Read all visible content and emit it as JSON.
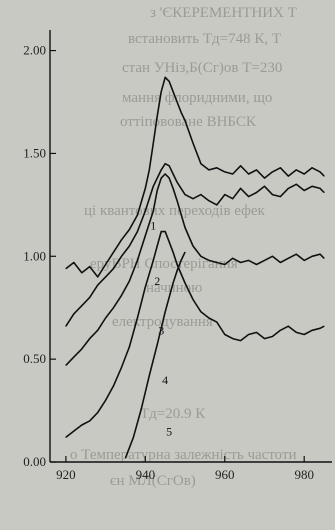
{
  "chart_data": {
    "type": "line",
    "title": "",
    "xlabel": "",
    "ylabel": "",
    "xlim": [
      916,
      987
    ],
    "ylim": [
      0.0,
      2.1
    ],
    "xticks": [
      920,
      940,
      960,
      980
    ],
    "yticks": [
      0.0,
      0.5,
      1.0,
      1.5,
      2.0
    ],
    "xtick_labels": [
      "920",
      "940",
      "960",
      "980"
    ],
    "ytick_labels": [
      "0.00",
      "0.50",
      "1.00",
      "1.50",
      "2.00"
    ],
    "grid": false,
    "legend": "none",
    "line_color": "#111111",
    "series": [
      {
        "label": "1",
        "label_at": [
          942,
          1.13
        ],
        "x": [
          920,
          922,
          924,
          926,
          928,
          930,
          932,
          934,
          936,
          938,
          940,
          941,
          942,
          943,
          944,
          945,
          946,
          947,
          948,
          949,
          950,
          952,
          954,
          956,
          958,
          960,
          962,
          964,
          966,
          968,
          970,
          972,
          974,
          976,
          978,
          980,
          982,
          984,
          985
        ],
        "y": [
          0.94,
          0.97,
          0.92,
          0.95,
          0.9,
          0.96,
          1.02,
          1.08,
          1.13,
          1.2,
          1.33,
          1.42,
          1.55,
          1.68,
          1.8,
          1.87,
          1.85,
          1.8,
          1.75,
          1.7,
          1.66,
          1.55,
          1.45,
          1.42,
          1.43,
          1.41,
          1.4,
          1.44,
          1.4,
          1.42,
          1.38,
          1.41,
          1.43,
          1.39,
          1.42,
          1.4,
          1.43,
          1.41,
          1.39
        ]
      },
      {
        "label": "2",
        "label_at": [
          943,
          0.86
        ],
        "x": [
          920,
          922,
          924,
          926,
          928,
          930,
          932,
          934,
          936,
          938,
          940,
          942,
          944,
          945,
          946,
          947,
          948,
          950,
          952,
          954,
          956,
          958,
          960,
          962,
          964,
          966,
          968,
          970,
          972,
          974,
          976,
          978,
          980,
          982,
          984,
          985
        ],
        "y": [
          0.66,
          0.72,
          0.76,
          0.8,
          0.86,
          0.9,
          0.94,
          1.0,
          1.05,
          1.12,
          1.22,
          1.34,
          1.42,
          1.45,
          1.44,
          1.4,
          1.36,
          1.3,
          1.28,
          1.3,
          1.27,
          1.25,
          1.3,
          1.28,
          1.33,
          1.29,
          1.31,
          1.34,
          1.3,
          1.29,
          1.33,
          1.35,
          1.32,
          1.34,
          1.33,
          1.31
        ]
      },
      {
        "label": "3",
        "label_at": [
          944,
          0.62
        ],
        "x": [
          920,
          922,
          924,
          926,
          928,
          930,
          932,
          934,
          936,
          938,
          940,
          942,
          943,
          944,
          945,
          946,
          947,
          948,
          950,
          952,
          954,
          956,
          958,
          960,
          962,
          964,
          966,
          968,
          970,
          972,
          974,
          976,
          978,
          980,
          982,
          984,
          985
        ],
        "y": [
          0.47,
          0.51,
          0.55,
          0.6,
          0.64,
          0.7,
          0.75,
          0.81,
          0.88,
          0.98,
          1.1,
          1.22,
          1.32,
          1.38,
          1.4,
          1.38,
          1.33,
          1.27,
          1.14,
          1.05,
          1.0,
          0.98,
          0.97,
          0.96,
          0.99,
          0.97,
          0.98,
          0.96,
          0.98,
          1.0,
          0.97,
          0.99,
          1.01,
          0.98,
          1.0,
          1.01,
          0.99
        ]
      },
      {
        "label": "4",
        "label_at": [
          945,
          0.38
        ],
        "x": [
          920,
          922,
          924,
          926,
          928,
          930,
          932,
          934,
          936,
          938,
          940,
          942,
          943,
          944,
          945,
          946,
          947,
          948,
          950,
          952,
          954,
          956,
          958,
          960,
          962,
          964,
          966,
          968,
          970,
          972,
          974,
          976,
          978,
          980,
          982,
          984,
          985
        ],
        "y": [
          0.12,
          0.15,
          0.18,
          0.2,
          0.24,
          0.3,
          0.37,
          0.46,
          0.56,
          0.7,
          0.85,
          0.98,
          1.05,
          1.12,
          1.12,
          1.07,
          1.02,
          0.96,
          0.87,
          0.79,
          0.73,
          0.7,
          0.68,
          0.62,
          0.6,
          0.59,
          0.62,
          0.63,
          0.6,
          0.61,
          0.64,
          0.66,
          0.63,
          0.62,
          0.64,
          0.65,
          0.66
        ]
      },
      {
        "label": "5",
        "label_at": [
          946,
          0.13
        ],
        "x": [
          935,
          937,
          939,
          941,
          943,
          945,
          947,
          948,
          949,
          950
        ],
        "y": [
          0.02,
          0.12,
          0.26,
          0.42,
          0.57,
          0.73,
          0.87,
          0.93,
          0.98,
          1.02
        ]
      }
    ]
  },
  "background_text": [
    "з 'ЄКЕРЕМЕНТНИХ Т",
    "встановить  Tд=748  К,  Т",
    "стан  УНіз,Б(Сг)ов  Т=230",
    "мання  флоридними,  що",
    "оттіпововане  ВНБСК",
    "ці  квантових  переходів  ефек",
    "еруВРН         Спостерігання",
    "начиною",
    "електродування",
    "Tд=20.9 К",
    "о  Температурна  залежність  частоти",
    "єн  МЛ(СгОв)"
  ]
}
